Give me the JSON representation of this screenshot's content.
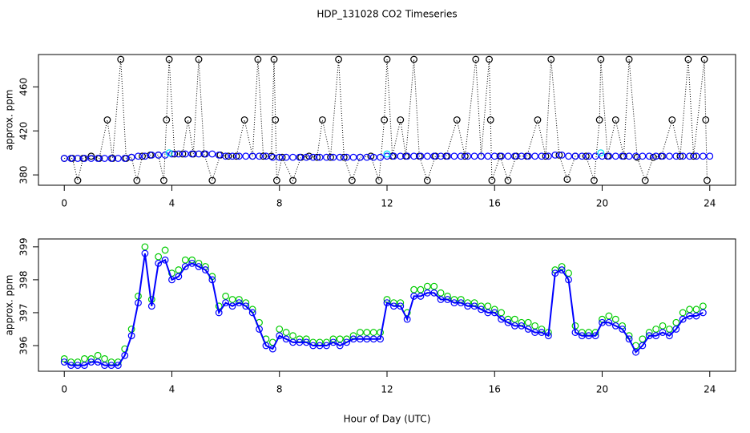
{
  "chart_data": [
    {
      "type": "scatter",
      "title": "HDP_131028  CO2 Timeseries",
      "ylabel": "approx. ppm",
      "xlim": [
        -0.96,
        24.96
      ],
      "xticks": [
        0,
        4,
        8,
        12,
        16,
        20,
        24
      ],
      "ylim": [
        370.6,
        489.4
      ],
      "yticks": [
        380,
        420,
        460
      ],
      "series": [
        {
          "color": "#000000",
          "line": "dotted",
          "x": [
            0.0,
            0.3,
            0.5,
            0.7,
            1.0,
            1.3,
            1.6,
            1.8,
            2.1,
            2.3,
            2.5,
            2.7,
            2.9,
            3.2,
            3.5,
            3.7,
            3.8,
            3.9,
            4.1,
            4.4,
            4.6,
            4.8,
            5.0,
            5.2,
            5.5,
            5.8,
            6.1,
            6.4,
            6.7,
            7.0,
            7.2,
            7.4,
            7.7,
            7.8,
            7.85,
            7.9,
            8.1,
            8.5,
            8.8,
            9.1,
            9.4,
            9.6,
            9.9,
            10.2,
            10.4,
            10.7,
            11.0,
            11.4,
            11.7,
            11.9,
            12.0,
            12.2,
            12.5,
            12.7,
            13.0,
            13.2,
            13.5,
            13.8,
            14.2,
            14.6,
            14.9,
            15.3,
            15.5,
            15.8,
            15.85,
            15.9,
            16.2,
            16.5,
            16.8,
            17.2,
            17.6,
            17.9,
            18.1,
            18.4,
            18.7,
            19.0,
            19.4,
            19.7,
            19.9,
            19.95,
            20.2,
            20.5,
            20.8,
            21.0,
            21.3,
            21.6,
            21.9,
            22.2,
            22.6,
            22.9,
            23.2,
            23.4,
            23.8,
            23.85,
            23.9
          ],
          "values": [
            395,
            395,
            375,
            395,
            397,
            395,
            430,
            395,
            485,
            395,
            396,
            375,
            397,
            398,
            398,
            375,
            430,
            485,
            399,
            399,
            430,
            399,
            485,
            399,
            375,
            398,
            397,
            397,
            430,
            397,
            485,
            397,
            397,
            485,
            430,
            375,
            396,
            375,
            396,
            397,
            396,
            430,
            396,
            485,
            396,
            375,
            396,
            397,
            375,
            430,
            485,
            397,
            430,
            397,
            485,
            397,
            375,
            397,
            397,
            430,
            397,
            485,
            397,
            485,
            430,
            375,
            397,
            375,
            397,
            397,
            430,
            397,
            485,
            398,
            376,
            397,
            397,
            375,
            430,
            485,
            397,
            430,
            397,
            485,
            396,
            375,
            396,
            397,
            430,
            397,
            485,
            397,
            485,
            430,
            375
          ]
        },
        {
          "color": "#0000ff",
          "x": [
            0,
            0.25,
            0.5,
            0.75,
            1,
            1.25,
            1.5,
            1.75,
            2,
            2.25,
            2.5,
            2.75,
            3,
            3.25,
            3.5,
            3.75,
            4,
            4.25,
            4.5,
            4.75,
            5,
            5.25,
            5.5,
            5.75,
            6,
            6.25,
            6.5,
            6.75,
            7,
            7.25,
            7.5,
            7.75,
            8,
            8.25,
            8.5,
            8.75,
            9,
            9.25,
            9.5,
            9.75,
            10,
            10.25,
            10.5,
            10.75,
            11,
            11.25,
            11.5,
            11.75,
            12,
            12.25,
            12.5,
            12.75,
            13,
            13.25,
            13.5,
            13.75,
            14,
            14.25,
            14.5,
            14.75,
            15,
            15.25,
            15.5,
            15.75,
            16,
            16.25,
            16.5,
            16.75,
            17,
            17.25,
            17.5,
            17.75,
            18,
            18.25,
            18.5,
            18.75,
            19,
            19.25,
            19.5,
            19.75,
            20,
            20.25,
            20.5,
            20.75,
            21,
            21.25,
            21.5,
            21.75,
            22,
            22.25,
            22.5,
            22.75,
            23,
            23.25,
            23.5,
            23.75,
            24
          ],
          "values": [
            395,
            395,
            395,
            395,
            395,
            395,
            395,
            395,
            395,
            395,
            396,
            397,
            397,
            398,
            398,
            398,
            399,
            399,
            399,
            399,
            399,
            399,
            399,
            398,
            397,
            397,
            397,
            397,
            397,
            397,
            397,
            396,
            396,
            396,
            396,
            396,
            396,
            396,
            396,
            396,
            396,
            396,
            396,
            396,
            396,
            396,
            396,
            396,
            397,
            397,
            397,
            397,
            397,
            397,
            397,
            397,
            397,
            397,
            397,
            397,
            397,
            397,
            397,
            397,
            397,
            397,
            397,
            397,
            397,
            397,
            397,
            397,
            397,
            398,
            398,
            397,
            397,
            397,
            397,
            397,
            397,
            397,
            397,
            397,
            397,
            397,
            397,
            397,
            397,
            397,
            397,
            397,
            397,
            397,
            397,
            397,
            397
          ]
        },
        {
          "color": "#00e5ee",
          "x": [
            3.9,
            12.0,
            19.95
          ],
          "values": [
            400,
            399,
            400
          ]
        }
      ]
    },
    {
      "type": "scatter",
      "ylabel": "approx. ppm",
      "xlabel": "Hour of Day (UTC)",
      "xlim": [
        -0.96,
        24.96
      ],
      "xticks": [
        0,
        4,
        8,
        12,
        16,
        20,
        24
      ],
      "ylim": [
        395.22,
        399.24
      ],
      "yticks": [
        396,
        397,
        398,
        399
      ],
      "x": [
        0,
        0.25,
        0.5,
        0.75,
        1,
        1.25,
        1.5,
        1.75,
        2,
        2.25,
        2.5,
        2.75,
        3,
        3.25,
        3.5,
        3.75,
        4,
        4.25,
        4.5,
        4.75,
        5,
        5.25,
        5.5,
        5.75,
        6,
        6.25,
        6.5,
        6.75,
        7,
        7.25,
        7.5,
        7.75,
        8,
        8.25,
        8.5,
        8.75,
        9,
        9.25,
        9.5,
        9.75,
        10,
        10.25,
        10.5,
        10.75,
        11,
        11.25,
        11.5,
        11.75,
        12,
        12.25,
        12.5,
        12.75,
        13,
        13.25,
        13.5,
        13.75,
        14,
        14.25,
        14.5,
        14.75,
        15,
        15.25,
        15.5,
        15.75,
        16,
        16.25,
        16.5,
        16.75,
        17,
        17.25,
        17.5,
        17.75,
        18,
        18.25,
        18.5,
        18.75,
        19,
        19.25,
        19.5,
        19.75,
        20,
        20.25,
        20.5,
        20.75,
        21,
        21.25,
        21.5,
        21.75,
        22,
        22.25,
        22.5,
        22.75,
        23,
        23.25,
        23.5,
        23.75
      ],
      "series": [
        {
          "color": "#00cc00",
          "values": [
            395.6,
            395.5,
            395.5,
            395.6,
            395.6,
            395.7,
            395.6,
            395.5,
            395.5,
            395.9,
            396.5,
            397.5,
            399.0,
            397.4,
            398.7,
            398.9,
            398.2,
            398.3,
            398.6,
            398.6,
            398.5,
            398.4,
            398.1,
            397.2,
            397.5,
            397.4,
            397.4,
            397.3,
            397.1,
            396.7,
            396.2,
            396.1,
            396.5,
            396.4,
            396.3,
            396.2,
            396.2,
            396.1,
            396.1,
            396.1,
            396.2,
            396.2,
            396.2,
            396.3,
            396.4,
            396.4,
            396.4,
            396.4,
            397.4,
            397.3,
            397.3,
            397.0,
            397.7,
            397.7,
            397.8,
            397.8,
            397.6,
            397.5,
            397.4,
            397.4,
            397.3,
            397.3,
            397.2,
            397.2,
            397.1,
            397.0,
            396.8,
            396.8,
            396.7,
            396.7,
            396.6,
            396.5,
            396.4,
            398.3,
            398.4,
            398.2,
            396.6,
            396.4,
            396.4,
            396.4,
            396.8,
            396.9,
            396.8,
            396.6,
            396.3,
            396.0,
            396.2,
            396.4,
            396.5,
            396.6,
            396.5,
            396.7,
            397.0,
            397.1,
            397.1,
            397.2
          ]
        },
        {
          "color": "#0000ff",
          "line": "solid",
          "values": [
            395.5,
            395.4,
            395.4,
            395.4,
            395.5,
            395.5,
            395.4,
            395.4,
            395.4,
            395.7,
            396.3,
            397.3,
            398.8,
            397.2,
            398.5,
            398.6,
            398.0,
            398.1,
            398.4,
            398.5,
            398.4,
            398.3,
            398.0,
            397.0,
            397.3,
            397.2,
            397.3,
            397.2,
            397.0,
            396.5,
            396.0,
            395.9,
            396.3,
            396.2,
            396.1,
            396.1,
            396.1,
            396.0,
            396.0,
            396.0,
            396.1,
            396.0,
            396.1,
            396.2,
            396.2,
            396.2,
            396.2,
            396.2,
            397.3,
            397.2,
            397.2,
            396.8,
            397.5,
            397.5,
            397.6,
            397.6,
            397.4,
            397.4,
            397.3,
            397.3,
            397.2,
            397.2,
            397.1,
            397.0,
            397.0,
            396.8,
            396.7,
            396.6,
            396.6,
            396.5,
            396.4,
            396.4,
            396.3,
            398.2,
            398.3,
            398.0,
            396.4,
            396.3,
            396.3,
            396.3,
            396.7,
            396.7,
            396.6,
            396.5,
            396.2,
            395.8,
            396.0,
            396.3,
            396.3,
            396.4,
            396.3,
            396.5,
            396.8,
            396.9,
            396.9,
            397.0
          ]
        }
      ]
    }
  ]
}
